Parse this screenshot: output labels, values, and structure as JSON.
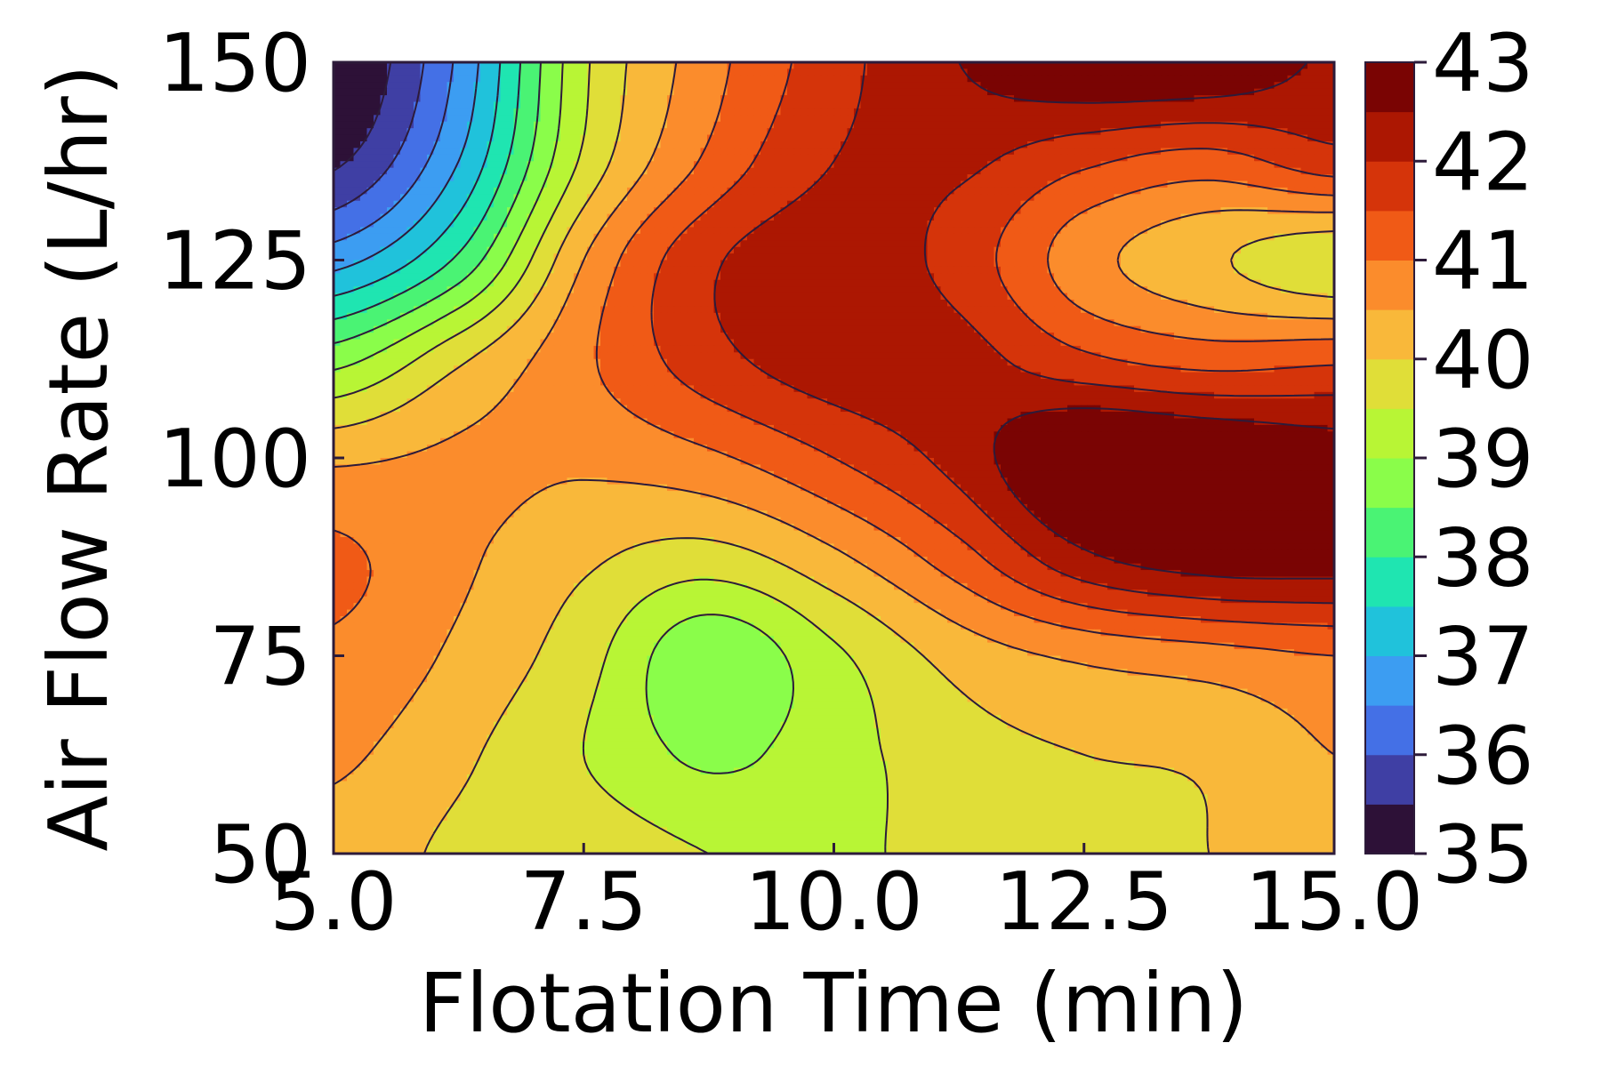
{
  "chart_data": {
    "type": "heatmap",
    "subtype": "filled-contour",
    "title": "",
    "xlabel": "Flotation Time (min)",
    "ylabel": "Air Flow Rate (L/hr)",
    "xlim": [
      5.0,
      15.0
    ],
    "ylim": [
      50,
      150
    ],
    "x_ticks": [
      "5.0",
      "7.5",
      "10.0",
      "12.5",
      "15.0"
    ],
    "y_ticks": [
      "50",
      "75",
      "100",
      "125",
      "150"
    ],
    "x": [
      5.0,
      6.25,
      7.5,
      8.75,
      10.0,
      11.25,
      12.5,
      13.75,
      15.0
    ],
    "y": [
      50,
      62.5,
      75,
      87.5,
      100,
      112.5,
      125,
      137.5,
      150
    ],
    "z": [
      [
        40.3,
        39.9,
        39.8,
        39.5,
        39.4,
        39.7,
        39.9,
        40.0,
        40.5
      ],
      [
        40.6,
        40.1,
        39.5,
        38.9,
        39.3,
        39.8,
        40.0,
        40.1,
        40.5
      ],
      [
        40.9,
        40.4,
        39.7,
        38.6,
        39.4,
        40.2,
        40.6,
        40.8,
        41.0
      ],
      [
        41.1,
        40.6,
        40.1,
        39.8,
        40.4,
        41.3,
        42.4,
        42.8,
        42.8
      ],
      [
        40.4,
        40.6,
        40.6,
        40.9,
        41.5,
        42.2,
        43.2,
        43.1,
        42.8
      ],
      [
        38.8,
        39.9,
        40.9,
        41.8,
        42.3,
        42.2,
        41.6,
        41.3,
        41.4
      ],
      [
        36.8,
        38.1,
        40.5,
        41.9,
        42.3,
        41.8,
        40.7,
        40.1,
        39.6
      ],
      [
        35.4,
        37.0,
        39.6,
        41.1,
        42.0,
        42.1,
        41.6,
        41.3,
        41.8
      ],
      [
        34.9,
        36.6,
        39.4,
        40.8,
        41.8,
        42.5,
        43.0,
        43.0,
        42.4
      ]
    ],
    "levels": [
      35,
      35.5,
      36,
      36.5,
      37,
      37.5,
      38,
      38.5,
      39,
      39.5,
      40,
      40.5,
      41,
      41.5,
      42,
      42.5,
      43
    ],
    "colorbar": {
      "ticks": [
        "35",
        "36",
        "37",
        "38",
        "39",
        "40",
        "41",
        "42",
        "43"
      ],
      "colors": [
        "#2d1137",
        "#3f3fa4",
        "#4470e6",
        "#3c9df2",
        "#20c2db",
        "#1fe5b1",
        "#4af374",
        "#8afd4a",
        "#b8f535",
        "#e0de38",
        "#f9b83a",
        "#fb8c2c",
        "#f05a16",
        "#d5340a",
        "#ac1702",
        "#7a0403"
      ]
    },
    "grid": false,
    "legend": "colorbar-right"
  }
}
